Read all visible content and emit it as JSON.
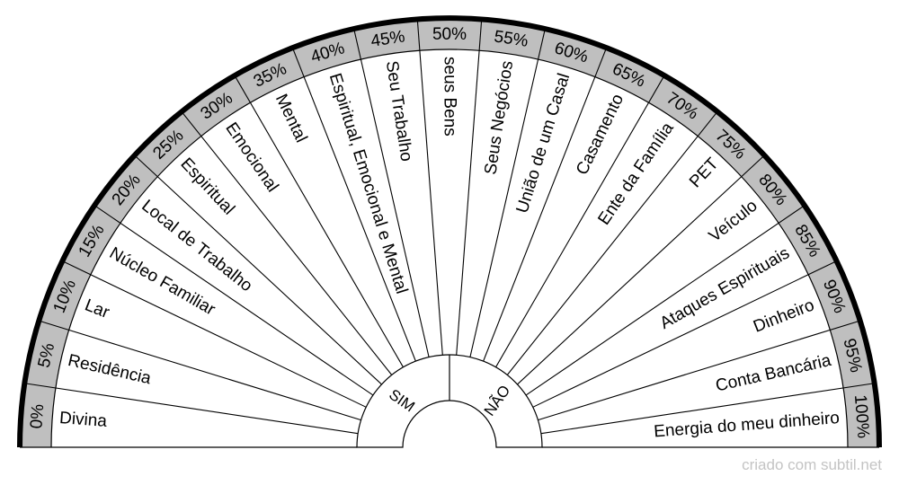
{
  "band_color": "#bfbfbf",
  "line_color": "#000000",
  "segments": [
    {
      "percent": "0%",
      "label": "Divina"
    },
    {
      "percent": "5%",
      "label": "Residência"
    },
    {
      "percent": "10%",
      "label": "Lar"
    },
    {
      "percent": "15%",
      "label": "Núcleo Familiar"
    },
    {
      "percent": "20%",
      "label": "Local de Trabalho"
    },
    {
      "percent": "25%",
      "label": "Espiritual"
    },
    {
      "percent": "30%",
      "label": "Emocional"
    },
    {
      "percent": "35%",
      "label": "Mental"
    },
    {
      "percent": "40%",
      "label": "Espiritual, Emocional e Mental"
    },
    {
      "percent": "45%",
      "label": "Seu Trabalho"
    },
    {
      "percent": "50%",
      "label": "seus Bens"
    },
    {
      "percent": "55%",
      "label": "Seus Negócios"
    },
    {
      "percent": "60%",
      "label": "União de um Casal"
    },
    {
      "percent": "65%",
      "label": "Casamento"
    },
    {
      "percent": "70%",
      "label": "Ente da Família"
    },
    {
      "percent": "75%",
      "label": "PET"
    },
    {
      "percent": "80%",
      "label": "Veículo"
    },
    {
      "percent": "85%",
      "label": "Ataques Espirituais"
    },
    {
      "percent": "90%",
      "label": "Dinheiro"
    },
    {
      "percent": "95%",
      "label": "Conta Bancária"
    },
    {
      "percent": "100%",
      "label": "Energia do meu dinheiro"
    }
  ],
  "center": {
    "yes": "SIM",
    "no": "NÃO"
  },
  "watermark": "criado com subtil.net"
}
